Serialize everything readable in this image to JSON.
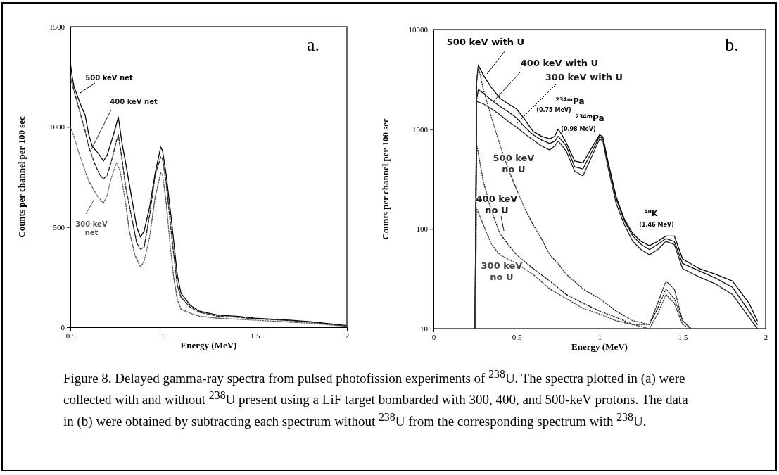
{
  "chart_data": [
    {
      "type": "line",
      "title": "a.",
      "xlabel": "Energy (MeV)",
      "ylabel": "Counts per channel per 100 sec",
      "xlim": [
        0.5,
        2
      ],
      "ylim": [
        0,
        1500
      ],
      "xticks": [
        0.5,
        1,
        1.5,
        2
      ],
      "yticks": [
        0,
        500,
        1000,
        1500
      ],
      "series": [
        {
          "name": "500 keV net",
          "color": "#000000",
          "line_style": "solid",
          "x": [
            0.5,
            0.51,
            0.52,
            0.54,
            0.56,
            0.58,
            0.6,
            0.62,
            0.65,
            0.68,
            0.7,
            0.72,
            0.74,
            0.76,
            0.78,
            0.8,
            0.83,
            0.86,
            0.88,
            0.9,
            0.93,
            0.96,
            0.99,
            1.0,
            1.02,
            1.05,
            1.08,
            1.1,
            1.15,
            1.2,
            1.3,
            1.4,
            1.5,
            1.6,
            1.7,
            1.8,
            1.9,
            2.0
          ],
          "values": [
            1320,
            1250,
            1200,
            1150,
            1100,
            1060,
            960,
            900,
            870,
            830,
            860,
            920,
            980,
            1050,
            920,
            820,
            660,
            500,
            450,
            480,
            600,
            770,
            900,
            880,
            760,
            520,
            260,
            170,
            110,
            80,
            60,
            55,
            45,
            40,
            35,
            28,
            18,
            8
          ]
        },
        {
          "name": "400 keV net",
          "color": "#222222",
          "line_style": "dashed",
          "x": [
            0.5,
            0.52,
            0.55,
            0.58,
            0.6,
            0.63,
            0.66,
            0.68,
            0.7,
            0.72,
            0.75,
            0.76,
            0.78,
            0.8,
            0.83,
            0.86,
            0.88,
            0.9,
            0.93,
            0.96,
            0.99,
            1.0,
            1.02,
            1.05,
            1.08,
            1.1,
            1.15,
            1.2,
            1.3,
            1.4,
            1.5,
            1.6,
            1.7,
            1.8,
            1.9,
            2.0
          ],
          "values": [
            1250,
            1180,
            1080,
            980,
            900,
            820,
            760,
            740,
            760,
            820,
            930,
            960,
            840,
            700,
            560,
            420,
            390,
            400,
            560,
            760,
            850,
            840,
            720,
            450,
            210,
            150,
            100,
            75,
            55,
            50,
            42,
            38,
            32,
            25,
            15,
            6
          ]
        },
        {
          "name": "300 keV net",
          "color": "#555555",
          "line_style": "dotted",
          "x": [
            0.5,
            0.52,
            0.55,
            0.58,
            0.6,
            0.63,
            0.65,
            0.68,
            0.7,
            0.72,
            0.75,
            0.77,
            0.8,
            0.82,
            0.85,
            0.87,
            0.88,
            0.9,
            0.93,
            0.96,
            0.99,
            1.0,
            1.02,
            1.04,
            1.06,
            1.08,
            1.1,
            1.15,
            1.2,
            1.3,
            1.4,
            1.5,
            1.6,
            1.7,
            1.8,
            1.9,
            2.0
          ],
          "values": [
            1000,
            950,
            860,
            780,
            730,
            680,
            650,
            620,
            660,
            740,
            820,
            780,
            620,
            480,
            360,
            320,
            300,
            330,
            450,
            650,
            770,
            760,
            620,
            420,
            250,
            140,
            90,
            70,
            55,
            45,
            40,
            35,
            30,
            25,
            20,
            12,
            5
          ]
        }
      ]
    },
    {
      "type": "line",
      "title": "b.",
      "xlabel": "Energy (MeV)",
      "ylabel": "Counts per channel per 100 sec",
      "log": true,
      "xlim": [
        0,
        2
      ],
      "ylim": [
        10,
        10000
      ],
      "xticks": [
        0,
        0.5,
        1,
        1.5,
        2
      ],
      "yticks": [
        10,
        100,
        1000,
        10000
      ],
      "annotations": [
        "$^{234m}$Pa",
        "(0.75 MeV)",
        "$^{234m}$Pa",
        "(0.98 MeV)",
        "$^{40}$K",
        "(1.46 MeV)"
      ],
      "series": [
        {
          "name": "500 keV with U",
          "color": "#000000",
          "line_style": "solid",
          "x": [
            0.25,
            0.26,
            0.27,
            0.3,
            0.35,
            0.4,
            0.45,
            0.5,
            0.55,
            0.6,
            0.65,
            0.7,
            0.73,
            0.75,
            0.77,
            0.8,
            0.85,
            0.9,
            0.95,
            1.0,
            1.02,
            1.05,
            1.1,
            1.15,
            1.2,
            1.25,
            1.3,
            1.35,
            1.4,
            1.45,
            1.5,
            1.6,
            1.7,
            1.8,
            1.9,
            1.95
          ],
          "values": [
            10,
            3000,
            4400,
            3500,
            2600,
            2050,
            1800,
            1600,
            1250,
            950,
            850,
            800,
            850,
            1000,
            900,
            730,
            480,
            460,
            640,
            880,
            840,
            480,
            210,
            125,
            90,
            75,
            68,
            75,
            85,
            85,
            50,
            40,
            35,
            30,
            18,
            12
          ]
        },
        {
          "name": "400 keV with U",
          "color": "#111111",
          "line_style": "solid",
          "x": [
            0.25,
            0.26,
            0.27,
            0.3,
            0.35,
            0.4,
            0.45,
            0.5,
            0.55,
            0.6,
            0.65,
            0.7,
            0.73,
            0.75,
            0.77,
            0.8,
            0.85,
            0.9,
            0.95,
            1.0,
            1.02,
            1.05,
            1.1,
            1.15,
            1.2,
            1.25,
            1.3,
            1.35,
            1.4,
            1.45,
            1.5,
            1.6,
            1.7,
            1.8,
            1.9,
            1.95
          ],
          "values": [
            10,
            2000,
            2500,
            2300,
            1950,
            1700,
            1500,
            1300,
            1050,
            880,
            780,
            720,
            760,
            850,
            780,
            680,
            420,
            400,
            580,
            850,
            800,
            460,
            200,
            120,
            85,
            70,
            62,
            70,
            80,
            75,
            45,
            38,
            32,
            26,
            15,
            11
          ]
        },
        {
          "name": "300 keV with U",
          "color": "#222222",
          "line_style": "solid",
          "x": [
            0.25,
            0.26,
            0.3,
            0.35,
            0.4,
            0.45,
            0.5,
            0.55,
            0.6,
            0.65,
            0.7,
            0.73,
            0.75,
            0.77,
            0.8,
            0.85,
            0.9,
            0.95,
            1.0,
            1.02,
            1.05,
            1.1,
            1.15,
            1.2,
            1.25,
            1.3,
            1.35,
            1.4,
            1.45,
            1.5,
            1.6,
            1.7,
            1.8,
            1.9,
            1.95
          ],
          "values": [
            10,
            1900,
            1800,
            1600,
            1400,
            1200,
            1050,
            900,
            780,
            680,
            620,
            680,
            760,
            700,
            600,
            380,
            340,
            520,
            800,
            760,
            420,
            180,
            110,
            75,
            62,
            55,
            62,
            75,
            70,
            40,
            33,
            28,
            22,
            13,
            10
          ]
        },
        {
          "name": "500 keV no U",
          "color": "#333333",
          "line_style": "dotted",
          "x": [
            0.25,
            0.26,
            0.27,
            0.3,
            0.35,
            0.4,
            0.45,
            0.5,
            0.55,
            0.6,
            0.65,
            0.7,
            0.75,
            0.8,
            0.9,
            1.0,
            1.1,
            1.2,
            1.3,
            1.35,
            1.4,
            1.45,
            1.5,
            1.55
          ],
          "values": [
            10,
            3000,
            4300,
            2500,
            1300,
            700,
            400,
            250,
            160,
            110,
            80,
            55,
            45,
            35,
            25,
            20,
            15,
            12,
            11,
            18,
            30,
            25,
            12,
            10
          ]
        },
        {
          "name": "400 keV no U",
          "color": "#1a1a1a",
          "line_style": "dotted",
          "x": [
            0.25,
            0.26,
            0.3,
            0.35,
            0.4,
            0.45,
            0.5,
            0.6,
            0.7,
            0.8,
            0.9,
            1.0,
            1.1,
            1.2,
            1.3,
            1.35,
            1.4,
            1.45,
            1.5,
            1.55
          ],
          "values": [
            10,
            700,
            300,
            150,
            90,
            70,
            55,
            40,
            30,
            22,
            18,
            15,
            13,
            11,
            11,
            16,
            25,
            20,
            12,
            10
          ]
        },
        {
          "name": "300 keV no U",
          "color": "#444444",
          "line_style": "dotted",
          "x": [
            0.25,
            0.26,
            0.3,
            0.35,
            0.4,
            0.5,
            0.6,
            0.7,
            0.8,
            0.9,
            1.0,
            1.1,
            1.2,
            1.3,
            1.35,
            1.4,
            1.45,
            1.5,
            1.55
          ],
          "values": [
            10,
            160,
            110,
            70,
            55,
            45,
            35,
            25,
            20,
            16,
            14,
            12,
            11,
            10,
            14,
            22,
            18,
            11,
            10
          ]
        }
      ]
    },
    {
      "type": "other",
      "annotations": [
        "Figure 8.  Delayed gamma-ray spectra from pulsed photofission experiments of $^{238}$U.  The spectra plotted in (a) were collected with and without $^{238}$U present using a LiF target bombarded with 300, 400, and 500-keV protons.  The data in (b) were obtained by subtracting each spectrum without $^{238}$U from the corresponding spectrum with $^{238}$U."
      ]
    }
  ]
}
